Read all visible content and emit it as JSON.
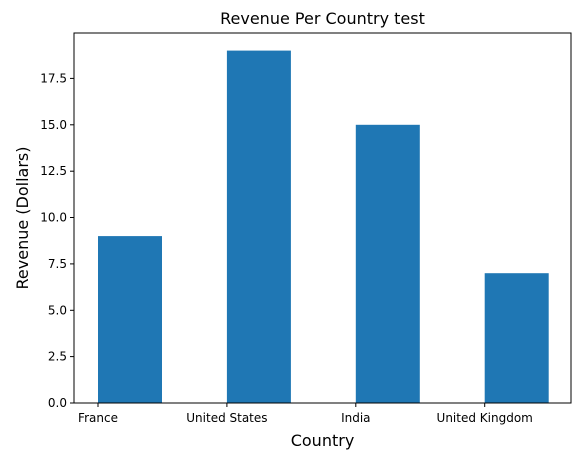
{
  "chart_data": {
    "type": "bar",
    "title": "Revenue Per Country test",
    "xlabel": "Country",
    "ylabel": "Revenue (Dollars)",
    "categories": [
      "France",
      "United States",
      "India",
      "United Kingdom"
    ],
    "values": [
      9,
      19,
      15,
      7
    ],
    "ylim": [
      0,
      19.95
    ],
    "yticks": [
      "0.0",
      "2.5",
      "5.0",
      "7.5",
      "10.0",
      "12.5",
      "15.0",
      "17.5"
    ],
    "grid": false,
    "bar_color": "#1f77b4"
  }
}
